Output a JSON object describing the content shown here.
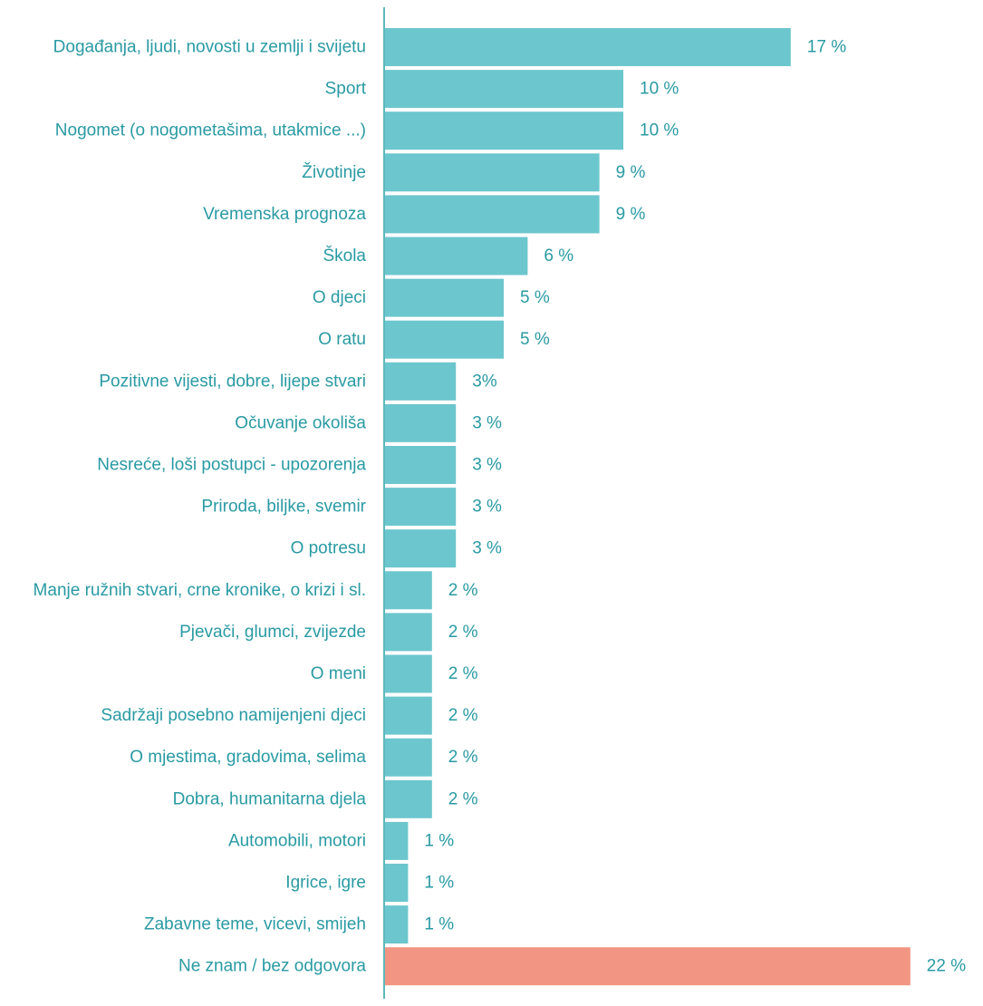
{
  "chart_data": {
    "type": "bar",
    "orientation": "horizontal",
    "categories": [
      "Događanja, ljudi, novosti u zemlji i svijetu",
      "Sport",
      "Nogomet (o nogometašima, utakmice ...)",
      "Životinje",
      "Vremenska prognoza",
      "Škola",
      "O djeci",
      "O ratu",
      "Pozitivne vijesti, dobre, lijepe stvari",
      "Očuvanje okoliša",
      "Nesreće, loši postupci - upozorenja",
      "Priroda, biljke, svemir",
      "O potresu",
      "Manje ružnih stvari, crne kronike, o krizi i sl.",
      "Pjevači, glumci, zvijezde",
      "O meni",
      "Sadržaji posebno namijenjeni djeci",
      "O mjestima, gradovima, selima",
      "Dobra, humanitarna djela",
      "Automobili, motori",
      "Igrice, igre",
      "Zabavne teme, vicevi, smijeh",
      "Ne znam / bez odgovora"
    ],
    "values": [
      17,
      10,
      10,
      9,
      9,
      6,
      5,
      5,
      3,
      3,
      3,
      3,
      3,
      2,
      2,
      2,
      2,
      2,
      2,
      1,
      1,
      1,
      22
    ],
    "value_labels": [
      "17 %",
      "10 %",
      "10 %",
      "9 %",
      "9 %",
      "6 %",
      "5 %",
      "5 %",
      "3%",
      "3 %",
      "3 %",
      "3 %",
      "3 %",
      "2 %",
      "2 %",
      "2 %",
      "2 %",
      "2 %",
      "2 %",
      "1 %",
      "1 %",
      "1 %",
      "22 %"
    ],
    "xlim": [
      0,
      22
    ],
    "grid": false,
    "legend": "none",
    "colors": {
      "bar": "#6cc6cd",
      "highlight": "#f29583",
      "axis": "#5fb8bf",
      "text": "#2a9aa3"
    },
    "highlight_categories": [
      "Ne znam / bez odgovora"
    ]
  }
}
